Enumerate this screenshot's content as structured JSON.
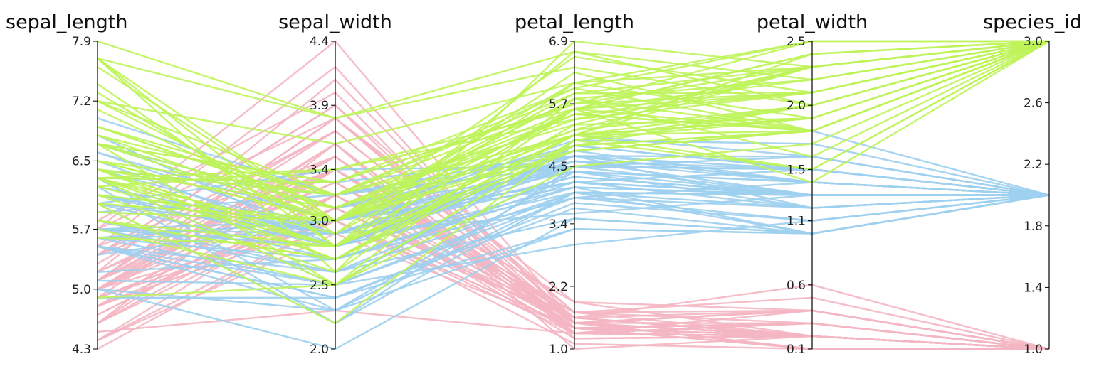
{
  "chart_data": {
    "type": "parallel_coordinates",
    "title": "",
    "axes": [
      {
        "name": "sepal_length",
        "min": 4.3,
        "max": 7.9,
        "ticks": [
          "4.3",
          "5.0",
          "5.7",
          "6.5",
          "7.2",
          "7.9"
        ]
      },
      {
        "name": "sepal_width",
        "min": 2.0,
        "max": 4.4,
        "ticks": [
          "2.0",
          "2.5",
          "3.0",
          "3.4",
          "3.9",
          "4.4"
        ]
      },
      {
        "name": "petal_length",
        "min": 1.0,
        "max": 6.9,
        "ticks": [
          "1.0",
          "2.2",
          "3.4",
          "4.5",
          "5.7",
          "6.9"
        ]
      },
      {
        "name": "petal_width",
        "min": 0.1,
        "max": 2.5,
        "ticks": [
          "0.1",
          "0.6",
          "1.1",
          "1.5",
          "2.0",
          "2.5"
        ]
      },
      {
        "name": "species_id",
        "min": 1.0,
        "max": 3.0,
        "ticks": [
          "1.0",
          "1.4",
          "1.8",
          "2.2",
          "2.6",
          "3.0"
        ]
      }
    ],
    "colors": {
      "1": "#f4b6c2",
      "2": "#9dcfee",
      "3": "#bef45a"
    },
    "series": [
      {
        "species_id": 1,
        "rows": [
          [
            5.1,
            3.5,
            1.4,
            0.2
          ],
          [
            4.9,
            3.0,
            1.4,
            0.2
          ],
          [
            4.7,
            3.2,
            1.3,
            0.2
          ],
          [
            4.6,
            3.1,
            1.5,
            0.2
          ],
          [
            5.0,
            3.6,
            1.4,
            0.2
          ],
          [
            5.4,
            3.9,
            1.7,
            0.4
          ],
          [
            4.6,
            3.4,
            1.4,
            0.3
          ],
          [
            5.0,
            3.4,
            1.5,
            0.2
          ],
          [
            4.4,
            2.9,
            1.4,
            0.2
          ],
          [
            4.9,
            3.1,
            1.5,
            0.1
          ],
          [
            5.4,
            3.7,
            1.5,
            0.2
          ],
          [
            4.8,
            3.4,
            1.6,
            0.2
          ],
          [
            4.8,
            3.0,
            1.4,
            0.1
          ],
          [
            4.3,
            3.0,
            1.1,
            0.1
          ],
          [
            5.8,
            4.0,
            1.2,
            0.2
          ],
          [
            5.7,
            4.4,
            1.5,
            0.4
          ],
          [
            5.4,
            3.9,
            1.3,
            0.4
          ],
          [
            5.1,
            3.5,
            1.4,
            0.3
          ],
          [
            5.7,
            3.8,
            1.7,
            0.3
          ],
          [
            5.1,
            3.8,
            1.5,
            0.3
          ],
          [
            5.4,
            3.4,
            1.7,
            0.2
          ],
          [
            5.1,
            3.7,
            1.5,
            0.4
          ],
          [
            4.6,
            3.6,
            1.0,
            0.2
          ],
          [
            5.1,
            3.3,
            1.7,
            0.5
          ],
          [
            4.8,
            3.4,
            1.9,
            0.2
          ],
          [
            5.0,
            3.0,
            1.6,
            0.2
          ],
          [
            5.0,
            3.4,
            1.6,
            0.4
          ],
          [
            5.2,
            3.5,
            1.5,
            0.2
          ],
          [
            5.2,
            3.4,
            1.4,
            0.2
          ],
          [
            4.7,
            3.2,
            1.6,
            0.2
          ],
          [
            4.8,
            3.1,
            1.6,
            0.2
          ],
          [
            5.4,
            3.4,
            1.5,
            0.4
          ],
          [
            5.2,
            4.1,
            1.5,
            0.1
          ],
          [
            5.5,
            4.2,
            1.4,
            0.2
          ],
          [
            4.9,
            3.1,
            1.5,
            0.2
          ],
          [
            5.0,
            3.2,
            1.2,
            0.2
          ],
          [
            5.5,
            3.5,
            1.3,
            0.2
          ],
          [
            4.9,
            3.6,
            1.4,
            0.1
          ],
          [
            4.4,
            3.0,
            1.3,
            0.2
          ],
          [
            5.1,
            3.4,
            1.5,
            0.2
          ],
          [
            5.0,
            3.5,
            1.3,
            0.3
          ],
          [
            4.5,
            2.3,
            1.3,
            0.3
          ],
          [
            4.4,
            3.2,
            1.3,
            0.2
          ],
          [
            5.0,
            3.5,
            1.6,
            0.6
          ],
          [
            5.1,
            3.8,
            1.9,
            0.4
          ],
          [
            4.8,
            3.0,
            1.4,
            0.3
          ],
          [
            5.1,
            3.8,
            1.6,
            0.2
          ],
          [
            4.6,
            3.2,
            1.4,
            0.2
          ],
          [
            5.3,
            3.7,
            1.5,
            0.2
          ],
          [
            5.0,
            3.3,
            1.4,
            0.2
          ]
        ]
      },
      {
        "species_id": 2,
        "rows": [
          [
            7.0,
            3.2,
            4.7,
            1.4
          ],
          [
            6.4,
            3.2,
            4.5,
            1.5
          ],
          [
            6.9,
            3.1,
            4.9,
            1.5
          ],
          [
            5.5,
            2.3,
            4.0,
            1.3
          ],
          [
            6.5,
            2.8,
            4.6,
            1.5
          ],
          [
            5.7,
            2.8,
            4.5,
            1.3
          ],
          [
            6.3,
            3.3,
            4.7,
            1.6
          ],
          [
            4.9,
            2.4,
            3.3,
            1.0
          ],
          [
            6.6,
            2.9,
            4.6,
            1.3
          ],
          [
            5.2,
            2.7,
            3.9,
            1.4
          ],
          [
            5.0,
            2.0,
            3.5,
            1.0
          ],
          [
            5.9,
            3.0,
            4.2,
            1.5
          ],
          [
            6.0,
            2.2,
            4.0,
            1.0
          ],
          [
            6.1,
            2.9,
            4.7,
            1.4
          ],
          [
            5.6,
            2.9,
            3.6,
            1.3
          ],
          [
            6.7,
            3.1,
            4.4,
            1.4
          ],
          [
            5.6,
            3.0,
            4.5,
            1.5
          ],
          [
            5.8,
            2.7,
            4.1,
            1.0
          ],
          [
            6.2,
            2.2,
            4.5,
            1.5
          ],
          [
            5.6,
            2.5,
            3.9,
            1.1
          ],
          [
            5.9,
            3.2,
            4.8,
            1.8
          ],
          [
            6.1,
            2.8,
            4.0,
            1.3
          ],
          [
            6.3,
            2.5,
            4.9,
            1.5
          ],
          [
            6.1,
            2.8,
            4.7,
            1.2
          ],
          [
            6.4,
            2.9,
            4.3,
            1.3
          ],
          [
            6.6,
            3.0,
            4.4,
            1.4
          ],
          [
            6.8,
            2.8,
            4.8,
            1.4
          ],
          [
            6.7,
            3.0,
            5.0,
            1.7
          ],
          [
            6.0,
            2.9,
            4.5,
            1.5
          ],
          [
            5.7,
            2.6,
            3.5,
            1.0
          ],
          [
            5.5,
            2.4,
            3.8,
            1.1
          ],
          [
            5.5,
            2.4,
            3.7,
            1.0
          ],
          [
            5.8,
            2.7,
            3.9,
            1.2
          ],
          [
            6.0,
            2.7,
            5.1,
            1.6
          ],
          [
            5.4,
            3.0,
            4.5,
            1.5
          ],
          [
            6.0,
            3.4,
            4.5,
            1.6
          ],
          [
            6.7,
            3.1,
            4.7,
            1.5
          ],
          [
            6.3,
            2.3,
            4.4,
            1.3
          ],
          [
            5.6,
            3.0,
            4.1,
            1.3
          ],
          [
            5.5,
            2.5,
            4.0,
            1.3
          ],
          [
            5.5,
            2.6,
            4.4,
            1.2
          ],
          [
            6.1,
            3.0,
            4.6,
            1.4
          ],
          [
            5.8,
            2.6,
            4.0,
            1.2
          ],
          [
            5.0,
            2.3,
            3.3,
            1.0
          ],
          [
            5.6,
            2.7,
            4.2,
            1.3
          ],
          [
            5.7,
            3.0,
            4.2,
            1.2
          ],
          [
            5.7,
            2.9,
            4.2,
            1.3
          ],
          [
            6.2,
            2.9,
            4.3,
            1.3
          ],
          [
            5.1,
            2.5,
            3.0,
            1.1
          ],
          [
            5.7,
            2.8,
            4.1,
            1.3
          ]
        ]
      },
      {
        "species_id": 3,
        "rows": [
          [
            6.3,
            3.3,
            6.0,
            2.5
          ],
          [
            5.8,
            2.7,
            5.1,
            1.9
          ],
          [
            7.1,
            3.0,
            5.9,
            2.1
          ],
          [
            6.3,
            2.9,
            5.6,
            1.8
          ],
          [
            6.5,
            3.0,
            5.8,
            2.2
          ],
          [
            7.6,
            3.0,
            6.6,
            2.1
          ],
          [
            4.9,
            2.5,
            4.5,
            1.7
          ],
          [
            7.3,
            2.9,
            6.3,
            1.8
          ],
          [
            6.7,
            2.5,
            5.8,
            1.8
          ],
          [
            7.2,
            3.6,
            6.1,
            2.5
          ],
          [
            6.5,
            3.2,
            5.1,
            2.0
          ],
          [
            6.4,
            2.7,
            5.3,
            1.9
          ],
          [
            6.8,
            3.0,
            5.5,
            2.1
          ],
          [
            5.7,
            2.5,
            5.0,
            2.0
          ],
          [
            5.8,
            2.8,
            5.1,
            2.4
          ],
          [
            6.4,
            3.2,
            5.3,
            2.3
          ],
          [
            6.5,
            3.0,
            5.5,
            1.8
          ],
          [
            7.7,
            3.8,
            6.7,
            2.2
          ],
          [
            7.7,
            2.6,
            6.9,
            2.3
          ],
          [
            6.0,
            2.2,
            5.0,
            1.5
          ],
          [
            6.9,
            3.2,
            5.7,
            2.3
          ],
          [
            5.6,
            2.8,
            4.9,
            2.0
          ],
          [
            7.7,
            2.8,
            6.7,
            2.0
          ],
          [
            6.3,
            2.7,
            4.9,
            1.8
          ],
          [
            6.7,
            3.3,
            5.7,
            2.1
          ],
          [
            7.2,
            3.2,
            6.0,
            1.8
          ],
          [
            6.2,
            2.8,
            4.8,
            1.8
          ],
          [
            6.1,
            3.0,
            4.9,
            1.8
          ],
          [
            6.4,
            2.8,
            5.6,
            2.1
          ],
          [
            7.2,
            3.0,
            5.8,
            1.6
          ],
          [
            7.4,
            2.8,
            6.1,
            1.9
          ],
          [
            7.9,
            3.8,
            6.4,
            2.0
          ],
          [
            6.4,
            2.8,
            5.6,
            2.2
          ],
          [
            6.3,
            2.8,
            5.1,
            1.5
          ],
          [
            6.1,
            2.6,
            5.6,
            1.4
          ],
          [
            7.7,
            3.0,
            6.1,
            2.3
          ],
          [
            6.3,
            3.4,
            5.6,
            2.4
          ],
          [
            6.4,
            3.1,
            5.5,
            1.8
          ],
          [
            6.0,
            3.0,
            4.8,
            1.8
          ],
          [
            6.9,
            3.1,
            5.4,
            2.1
          ],
          [
            6.7,
            3.1,
            5.6,
            2.4
          ],
          [
            6.9,
            3.1,
            5.1,
            2.3
          ],
          [
            5.8,
            2.7,
            5.1,
            1.9
          ],
          [
            6.8,
            3.2,
            5.9,
            2.3
          ],
          [
            6.7,
            3.3,
            5.7,
            2.5
          ],
          [
            6.7,
            3.0,
            5.2,
            2.3
          ],
          [
            6.3,
            2.5,
            5.0,
            1.9
          ],
          [
            6.5,
            3.0,
            5.2,
            2.0
          ],
          [
            6.2,
            3.4,
            5.4,
            2.3
          ],
          [
            5.9,
            3.0,
            5.1,
            1.8
          ]
        ]
      }
    ]
  }
}
